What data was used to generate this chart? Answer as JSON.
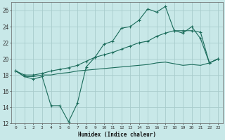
{
  "xlabel": "Humidex (Indice chaleur)",
  "background_color": "#c8e8e8",
  "grid_color": "#a8cccc",
  "line_color": "#1a6b5a",
  "xlim": [
    -0.5,
    23.5
  ],
  "ylim": [
    12,
    27
  ],
  "yticks": [
    12,
    14,
    16,
    18,
    20,
    22,
    24,
    26
  ],
  "xticks": [
    0,
    1,
    2,
    3,
    4,
    5,
    6,
    7,
    8,
    9,
    10,
    11,
    12,
    13,
    14,
    15,
    16,
    17,
    18,
    19,
    20,
    21,
    22,
    23
  ],
  "line1_x": [
    0,
    1,
    2,
    3,
    4,
    5,
    6,
    7,
    8,
    9,
    10,
    11,
    12,
    13,
    14,
    15,
    16,
    17,
    18,
    19,
    20,
    21,
    22,
    23
  ],
  "line1_y": [
    18.5,
    17.8,
    17.5,
    17.8,
    14.2,
    14.2,
    12.2,
    14.5,
    19.0,
    20.2,
    21.8,
    22.2,
    23.8,
    24.0,
    24.8,
    26.2,
    25.8,
    26.5,
    23.5,
    23.2,
    24.0,
    22.5,
    19.5,
    20.0
  ],
  "line2_x": [
    0,
    1,
    2,
    3,
    4,
    5,
    6,
    7,
    8,
    9,
    10,
    11,
    12,
    13,
    14,
    15,
    16,
    17,
    18,
    19,
    20,
    21,
    22,
    23
  ],
  "line2_y": [
    18.5,
    18.0,
    18.0,
    18.2,
    18.5,
    18.7,
    18.9,
    19.2,
    19.7,
    20.2,
    20.5,
    20.8,
    21.2,
    21.6,
    22.0,
    22.2,
    22.8,
    23.2,
    23.5,
    23.5,
    23.5,
    23.3,
    19.5,
    20.0
  ],
  "line3_x": [
    0,
    1,
    2,
    3,
    4,
    5,
    6,
    7,
    8,
    9,
    10,
    11,
    12,
    13,
    14,
    15,
    16,
    17,
    18,
    19,
    20,
    21,
    22,
    23
  ],
  "line3_y": [
    18.5,
    17.8,
    17.8,
    18.0,
    18.0,
    18.2,
    18.3,
    18.5,
    18.6,
    18.7,
    18.8,
    18.9,
    19.0,
    19.1,
    19.2,
    19.3,
    19.5,
    19.6,
    19.4,
    19.2,
    19.3,
    19.2,
    19.5,
    20.0
  ]
}
